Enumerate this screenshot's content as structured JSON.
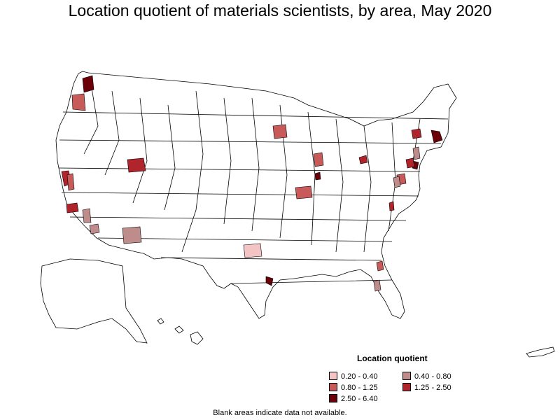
{
  "title": "Location quotient of materials scientists, by area, May 2020",
  "legend": {
    "title": "Location quotient",
    "items": [
      {
        "label": "0.20 - 0.40",
        "color": "#f4c4c4"
      },
      {
        "label": "0.40 - 0.80",
        "color": "#bf8c8c"
      },
      {
        "label": "0.80 - 1.25",
        "color": "#c95a5a"
      },
      {
        "label": "1.25 - 2.50",
        "color": "#b0242b"
      },
      {
        "label": "2.50 - 6.40",
        "color": "#6b0008"
      }
    ]
  },
  "note": "Blank areas indicate data not available.",
  "colors": {
    "outline": "#000000",
    "blank": "#ffffff"
  }
}
